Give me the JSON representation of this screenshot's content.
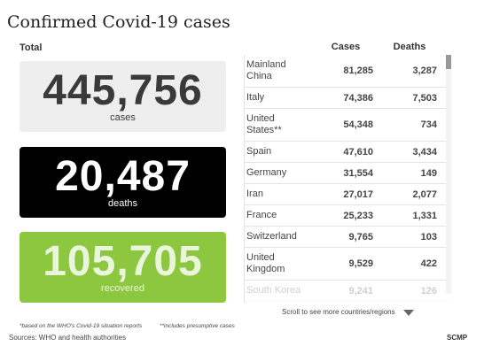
{
  "header": {
    "title": "Confirmed Covid-19 cases"
  },
  "totals": {
    "label": "Total",
    "boxes": [
      {
        "number": "445,756",
        "label": "cases"
      },
      {
        "number": "20,487",
        "label": "deaths"
      },
      {
        "number": "105,705",
        "label": "recovered"
      }
    ]
  },
  "table": {
    "columns": [
      "Cases",
      "Deaths"
    ],
    "rows": [
      [
        "Mainland China",
        "81,285",
        "3,287"
      ],
      [
        "Italy",
        "74,386",
        "7,503"
      ],
      [
        "United States**",
        "54,348",
        "734"
      ],
      [
        "Spain",
        "47,610",
        "3,434"
      ],
      [
        "Germany",
        "31,554",
        "149"
      ],
      [
        "Iran",
        "27,017",
        "2,077"
      ],
      [
        "France",
        "25,233",
        "1,331"
      ],
      [
        "Switzerland",
        "9,765",
        "103"
      ],
      [
        "United Kingdom",
        "9,529",
        "422"
      ],
      [
        "South Korea",
        "9,241",
        "126"
      ]
    ],
    "scroll_hint": "Scroll to see more countries/regions"
  },
  "footer": {
    "notes": [
      "*based on the WHO's Covid-19 situation reports",
      "**includes presumptive cases"
    ],
    "sources": "Sources: WHO and health authorities",
    "brand": "SCMP"
  }
}
